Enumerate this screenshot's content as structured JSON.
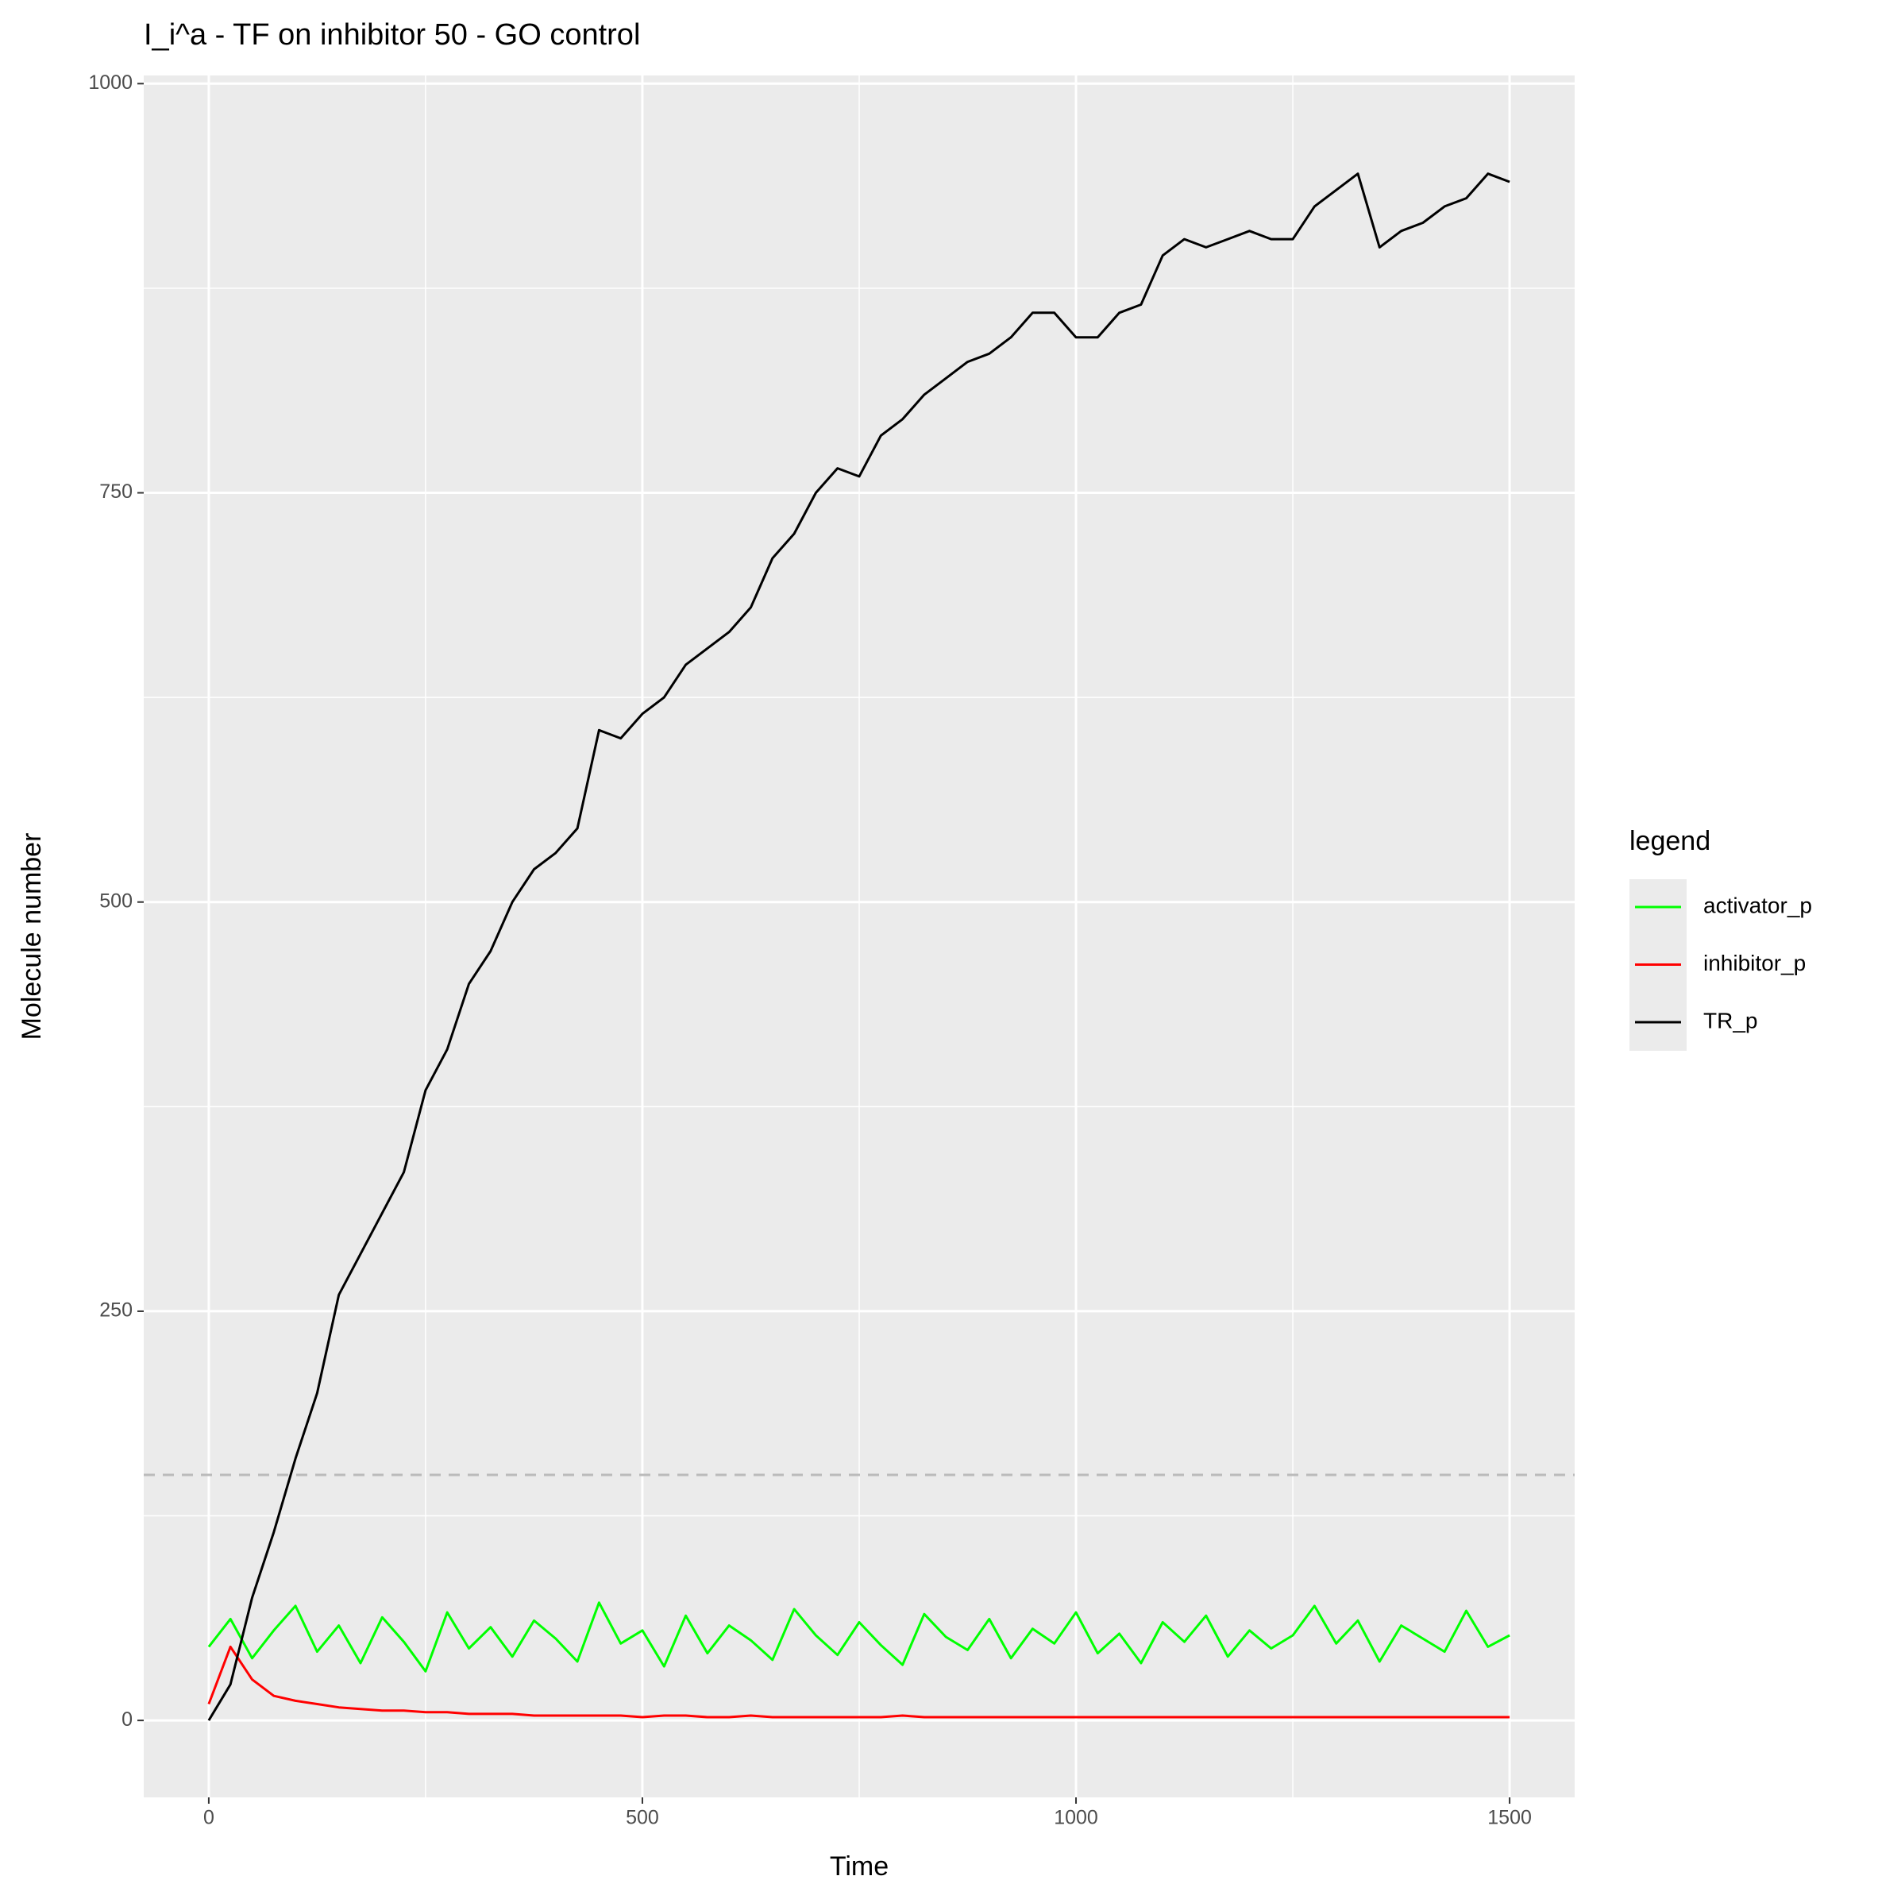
{
  "chart_data": {
    "type": "line",
    "title": "I_i^a - TF on inhibitor 50 - GO control",
    "x_label": "Time",
    "y_label": "Molecule number",
    "legend_title": "legend",
    "x": [
      0,
      25,
      50,
      75,
      100,
      125,
      150,
      175,
      200,
      225,
      250,
      275,
      300,
      325,
      350,
      375,
      400,
      425,
      450,
      475,
      500,
      525,
      550,
      575,
      600,
      625,
      650,
      675,
      700,
      725,
      750,
      775,
      800,
      825,
      850,
      875,
      900,
      925,
      950,
      975,
      1000,
      1025,
      1050,
      1075,
      1100,
      1125,
      1150,
      1175,
      1200,
      1225,
      1250,
      1275,
      1300,
      1325,
      1350,
      1375,
      1400,
      1425,
      1450,
      1475,
      1500
    ],
    "series": [
      {
        "name": "activator_p",
        "color": "#00ff00",
        "values": [
          45,
          62,
          38,
          55,
          70,
          42,
          58,
          35,
          63,
          48,
          30,
          66,
          44,
          57,
          39,
          61,
          50,
          36,
          72,
          47,
          55,
          33,
          64,
          41,
          58,
          49,
          37,
          68,
          52,
          40,
          60,
          46,
          34,
          65,
          51,
          43,
          62,
          38,
          56,
          47,
          66,
          41,
          53,
          35,
          60,
          48,
          64,
          39,
          55,
          44,
          52,
          70,
          47,
          61,
          36,
          58,
          50,
          42,
          67,
          45,
          52
        ]
      },
      {
        "name": "inhibitor_p",
        "color": "#ff0000",
        "values": [
          10,
          45,
          25,
          15,
          12,
          10,
          8,
          7,
          6,
          6,
          5,
          5,
          4,
          4,
          4,
          3,
          3,
          3,
          3,
          3,
          2,
          3,
          3,
          2,
          2,
          3,
          2,
          2,
          2,
          2,
          2,
          2,
          3,
          2,
          2,
          2,
          2,
          2,
          2,
          2,
          2,
          2,
          2,
          2,
          2,
          2,
          2,
          2,
          2,
          2,
          2,
          2,
          2,
          2,
          2,
          2,
          2,
          2,
          2,
          2,
          2
        ]
      },
      {
        "name": "TR_p",
        "color": "#000000",
        "values": [
          0,
          22,
          75,
          115,
          160,
          200,
          260,
          285,
          310,
          335,
          385,
          410,
          450,
          470,
          500,
          520,
          530,
          545,
          605,
          600,
          615,
          625,
          645,
          655,
          665,
          680,
          710,
          725,
          750,
          765,
          760,
          785,
          795,
          810,
          820,
          830,
          835,
          845,
          860,
          860,
          845,
          845,
          860,
          865,
          895,
          905,
          900,
          905,
          910,
          905,
          905,
          925,
          935,
          945,
          900,
          910,
          915,
          925,
          930,
          945,
          940
        ]
      }
    ],
    "hline": 150,
    "xlim": [
      -75,
      1575
    ],
    "ylim": [
      -47,
      1005
    ],
    "xticks": [
      0,
      500,
      1000,
      1500
    ],
    "yticks": [
      0,
      250,
      500,
      750,
      1000
    ],
    "grid": true
  }
}
